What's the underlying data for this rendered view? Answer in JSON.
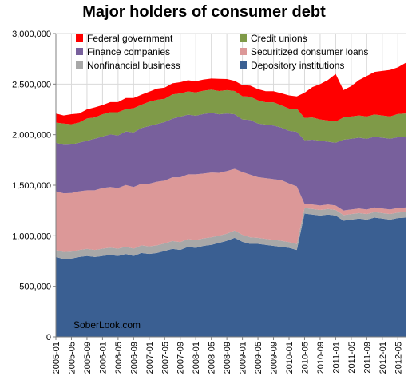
{
  "chart_data": {
    "type": "area",
    "stacked": true,
    "title": "Major holders of consumer debt",
    "xlabel": "",
    "ylabel": "",
    "ylim": [
      0,
      3000000
    ],
    "yticks": [
      0,
      500000,
      1000000,
      1500000,
      2000000,
      2500000,
      3000000
    ],
    "ytick_labels": [
      "0",
      "500,000",
      "1,000,000",
      "1,500,000",
      "2,000,000",
      "2,500,000",
      "3,000,000"
    ],
    "x": [
      "2005-01",
      "2005-03",
      "2005-05",
      "2005-07",
      "2005-09",
      "2005-11",
      "2006-01",
      "2006-03",
      "2006-05",
      "2006-07",
      "2006-09",
      "2006-11",
      "2007-01",
      "2007-03",
      "2007-05",
      "2007-07",
      "2007-09",
      "2007-11",
      "2008-01",
      "2008-03",
      "2008-05",
      "2008-07",
      "2008-09",
      "2008-11",
      "2009-01",
      "2009-03",
      "2009-05",
      "2009-07",
      "2009-09",
      "2009-11",
      "2010-01",
      "2010-03",
      "2010-05",
      "2010-07",
      "2010-09",
      "2010-11",
      "2011-01",
      "2011-03",
      "2011-05",
      "2011-07",
      "2011-09",
      "2011-11",
      "2012-01",
      "2012-03",
      "2012-05",
      "2012-07"
    ],
    "xtick_labels": [
      "2005-01",
      "2005-05",
      "2005-09",
      "2006-01",
      "2006-05",
      "2006-09",
      "2007-01",
      "2007-05",
      "2007-09",
      "2008-01",
      "2008-05",
      "2008-09",
      "2009-01",
      "2009-05",
      "2009-09",
      "2010-01",
      "2010-05",
      "2010-09",
      "2011-01",
      "2011-05",
      "2011-09",
      "2012-01",
      "2012-05"
    ],
    "series": [
      {
        "name": "Depository institutions",
        "color": "#3a5f92",
        "values": [
          790000,
          770000,
          775000,
          790000,
          800000,
          790000,
          800000,
          810000,
          800000,
          820000,
          800000,
          830000,
          820000,
          830000,
          850000,
          870000,
          860000,
          890000,
          880000,
          900000,
          910000,
          930000,
          950000,
          980000,
          940000,
          920000,
          920000,
          910000,
          900000,
          890000,
          880000,
          860000,
          1220000,
          1210000,
          1200000,
          1210000,
          1200000,
          1150000,
          1160000,
          1170000,
          1160000,
          1180000,
          1170000,
          1160000,
          1175000,
          1180000
        ]
      },
      {
        "name": "Nonfinancial business",
        "color": "#a8a8a8",
        "values": [
          70000,
          70000,
          68000,
          70000,
          70000,
          70000,
          72000,
          72000,
          72000,
          72000,
          72000,
          75000,
          75000,
          75000,
          75000,
          78000,
          78000,
          78000,
          78000,
          75000,
          75000,
          72000,
          70000,
          72000,
          70000,
          65000,
          60000,
          60000,
          60000,
          60000,
          58000,
          58000,
          55000,
          55000,
          55000,
          55000,
          55000,
          55000,
          55000,
          55000,
          55000,
          55000,
          55000,
          55000,
          55000,
          55000
        ]
      },
      {
        "name": "Securitized consumer loans",
        "color": "#dc9898",
        "values": [
          580000,
          580000,
          580000,
          580000,
          580000,
          590000,
          600000,
          600000,
          600000,
          610000,
          610000,
          610000,
          620000,
          630000,
          620000,
          630000,
          640000,
          640000,
          650000,
          640000,
          640000,
          620000,
          620000,
          610000,
          620000,
          620000,
          600000,
          600000,
          600000,
          600000,
          580000,
          570000,
          40000,
          45000,
          45000,
          45000,
          45000,
          45000,
          45000,
          45000,
          45000,
          45000,
          45000,
          45000,
          45000,
          45000
        ]
      },
      {
        "name": "Finance companies",
        "color": "#78609c",
        "values": [
          480000,
          480000,
          480000,
          480000,
          490000,
          510000,
          510000,
          520000,
          520000,
          530000,
          540000,
          550000,
          570000,
          570000,
          580000,
          580000,
          600000,
          590000,
          580000,
          590000,
          590000,
          580000,
          570000,
          540000,
          520000,
          540000,
          530000,
          530000,
          530000,
          520000,
          520000,
          540000,
          630000,
          640000,
          640000,
          620000,
          620000,
          700000,
          700000,
          700000,
          700000,
          700000,
          700000,
          700000,
          700000,
          700000
        ]
      },
      {
        "name": "Credit unions",
        "color": "#7f9a48",
        "values": [
          200000,
          210000,
          200000,
          200000,
          220000,
          210000,
          220000,
          220000,
          230000,
          220000,
          240000,
          230000,
          240000,
          240000,
          230000,
          240000,
          230000,
          230000,
          230000,
          230000,
          230000,
          230000,
          230000,
          230000,
          230000,
          230000,
          230000,
          220000,
          230000,
          220000,
          220000,
          230000,
          220000,
          220000,
          210000,
          210000,
          210000,
          220000,
          220000,
          220000,
          220000,
          220000,
          220000,
          220000,
          230000,
          230000
        ]
      },
      {
        "name": "Federal government",
        "color": "#ff0000",
        "values": [
          90000,
          80000,
          100000,
          90000,
          90000,
          100000,
          90000,
          100000,
          100000,
          110000,
          100000,
          100000,
          100000,
          110000,
          110000,
          110000,
          110000,
          110000,
          110000,
          110000,
          110000,
          120000,
          110000,
          100000,
          110000,
          110000,
          110000,
          110000,
          110000,
          120000,
          130000,
          120000,
          250000,
          300000,
          350000,
          400000,
          470000,
          270000,
          300000,
          350000,
          400000,
          420000,
          440000,
          460000,
          460000,
          500000
        ]
      }
    ],
    "legend_location": "top-left",
    "legend_columns": 2,
    "grid": true,
    "annotation": "SoberLook.com"
  }
}
